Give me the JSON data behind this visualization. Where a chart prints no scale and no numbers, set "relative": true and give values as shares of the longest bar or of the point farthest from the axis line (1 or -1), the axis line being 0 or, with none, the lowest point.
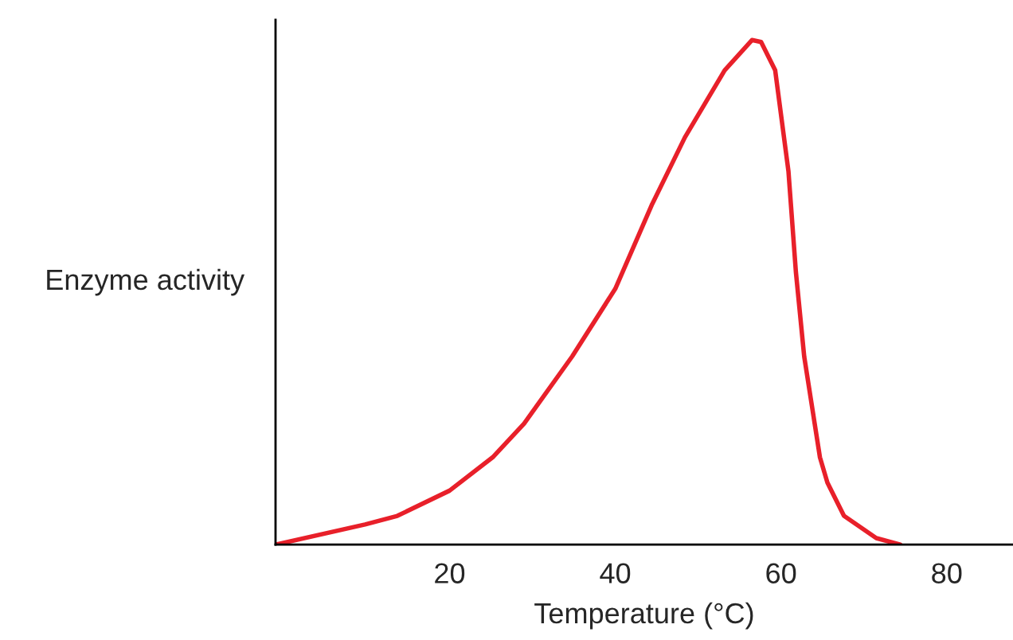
{
  "chart_data": {
    "type": "line",
    "relative": true,
    "xlabel": "Temperature (°C)",
    "ylabel": "Enzyme activity",
    "xlim": [
      -1,
      88
    ],
    "xticks": [
      20,
      40,
      60,
      80
    ],
    "grid": false,
    "marker": "none",
    "line_style": "solid",
    "series": [
      {
        "color": "#e8202a",
        "x": [
          -1,
          9.8,
          13.7,
          20,
          25.2,
          29,
          34.8,
          40,
          44.4,
          48.4,
          53.2,
          56.5,
          57.6,
          59.3,
          60.9,
          61.8,
          62.8,
          64.7,
          65.6,
          67.6,
          71.5,
          74.4
        ],
        "values": [
          0,
          0.04,
          0.057,
          0.107,
          0.173,
          0.24,
          0.373,
          0.507,
          0.673,
          0.807,
          0.94,
          1,
          0.996,
          0.94,
          0.74,
          0.54,
          0.373,
          0.173,
          0.123,
          0.057,
          0.013,
          0
        ]
      }
    ]
  }
}
